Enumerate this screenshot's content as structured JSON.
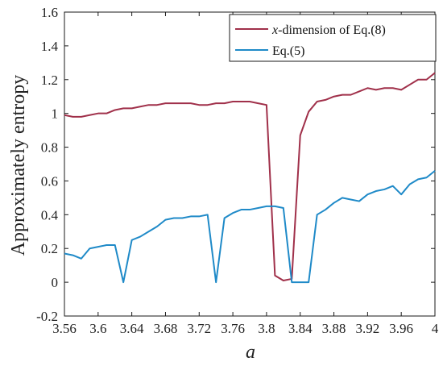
{
  "chart_data": {
    "type": "line",
    "xlabel": "a",
    "ylabel": "Approximately entropy",
    "xlim": [
      3.56,
      4.0
    ],
    "ylim": [
      -0.2,
      1.6
    ],
    "xticks": [
      "3.56",
      "3.6",
      "3.64",
      "3.68",
      "3.72",
      "3.76",
      "3.8",
      "3.84",
      "3.88",
      "3.92",
      "3.96",
      "4"
    ],
    "yticks": [
      "-0.2",
      "0",
      "0.2",
      "0.4",
      "0.6",
      "0.8",
      "1",
      "1.2",
      "1.4",
      "1.6"
    ],
    "grid": false,
    "legend_position": "top-right",
    "legend": {
      "italic_prefix": "x",
      "series1_rest": "-dimension of Eq.(8)",
      "series2": "Eq.(5)"
    },
    "series": [
      {
        "name": "x-dimension of Eq.(8)",
        "color": "#a0304a",
        "x": [
          3.56,
          3.57,
          3.58,
          3.59,
          3.6,
          3.61,
          3.62,
          3.63,
          3.64,
          3.65,
          3.66,
          3.67,
          3.68,
          3.69,
          3.7,
          3.71,
          3.72,
          3.73,
          3.74,
          3.75,
          3.76,
          3.77,
          3.78,
          3.79,
          3.8,
          3.81,
          3.82,
          3.83,
          3.84,
          3.85,
          3.86,
          3.87,
          3.88,
          3.89,
          3.9,
          3.91,
          3.92,
          3.93,
          3.94,
          3.95,
          3.96,
          3.97,
          3.98,
          3.99,
          4.0
        ],
        "values": [
          0.99,
          0.98,
          0.98,
          0.99,
          1.0,
          1.0,
          1.02,
          1.03,
          1.03,
          1.04,
          1.05,
          1.05,
          1.06,
          1.06,
          1.06,
          1.06,
          1.05,
          1.05,
          1.06,
          1.06,
          1.07,
          1.07,
          1.07,
          1.06,
          1.05,
          0.04,
          0.01,
          0.02,
          0.87,
          1.01,
          1.07,
          1.08,
          1.1,
          1.11,
          1.11,
          1.13,
          1.15,
          1.14,
          1.15,
          1.15,
          1.14,
          1.17,
          1.2,
          1.2,
          1.24
        ]
      },
      {
        "name": "Eq.(5)",
        "color": "#1f8ac8",
        "x": [
          3.56,
          3.57,
          3.58,
          3.59,
          3.6,
          3.61,
          3.62,
          3.63,
          3.64,
          3.65,
          3.66,
          3.67,
          3.68,
          3.69,
          3.7,
          3.71,
          3.72,
          3.73,
          3.74,
          3.75,
          3.76,
          3.77,
          3.78,
          3.79,
          3.8,
          3.81,
          3.82,
          3.83,
          3.84,
          3.85,
          3.86,
          3.87,
          3.88,
          3.89,
          3.9,
          3.91,
          3.92,
          3.93,
          3.94,
          3.95,
          3.96,
          3.97,
          3.98,
          3.99,
          4.0
        ],
        "values": [
          0.17,
          0.16,
          0.14,
          0.2,
          0.21,
          0.22,
          0.22,
          0.0,
          0.25,
          0.27,
          0.3,
          0.33,
          0.37,
          0.38,
          0.38,
          0.39,
          0.39,
          0.4,
          0.0,
          0.38,
          0.41,
          0.43,
          0.43,
          0.44,
          0.45,
          0.45,
          0.44,
          0.0,
          0.0,
          0.0,
          0.4,
          0.43,
          0.47,
          0.5,
          0.49,
          0.48,
          0.52,
          0.54,
          0.55,
          0.57,
          0.52,
          0.58,
          0.61,
          0.62,
          0.66
        ]
      }
    ]
  }
}
